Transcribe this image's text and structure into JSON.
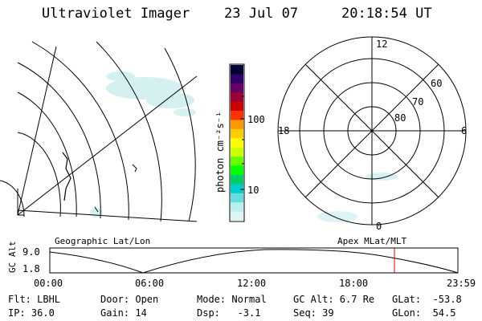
{
  "header": {
    "title": "Ultraviolet Imager",
    "date": "23 Jul 07",
    "time": "20:18:54 UT"
  },
  "geo_panel": {
    "label": "Geographic Lat/Lon"
  },
  "apex_panel": {
    "label": "Apex MLat/MLT",
    "mlt_labels": [
      "12",
      "18",
      "6",
      "0"
    ],
    "mlat_labels": [
      "60",
      "70",
      "80"
    ]
  },
  "colorbar": {
    "unit_label": "photon cm⁻²s⁻¹",
    "tick_labels": [
      "100",
      "10"
    ],
    "colors": [
      "#000033",
      "#330066",
      "#660066",
      "#990033",
      "#cc0000",
      "#ff3300",
      "#ff9900",
      "#ffcc00",
      "#ffff00",
      "#ccff00",
      "#66ff00",
      "#00ff00",
      "#00cc66",
      "#00cccc",
      "#66dddd",
      "#bbeeee",
      "#e0f4f4"
    ]
  },
  "altitude_plot": {
    "ylabel": "GC Alt",
    "y_ticks": [
      "9.0",
      "1.8"
    ],
    "x_ticks": [
      "00:00",
      "06:00",
      "12:00",
      "18:00",
      "23:59"
    ],
    "current_marker_color": "#cc0000"
  },
  "info": {
    "flt": "Flt: LBHL",
    "ip": "IP: 36.0",
    "door": "Door: Open",
    "gain": "Gain: 14",
    "mode": "Mode: Normal",
    "dsp": "Dsp:   -3.1",
    "gcalt": "GC Alt: 6.7 Re",
    "seq": "Seq: 39",
    "glat": "GLat:  -53.8",
    "glon": "GLon:  54.5"
  }
}
